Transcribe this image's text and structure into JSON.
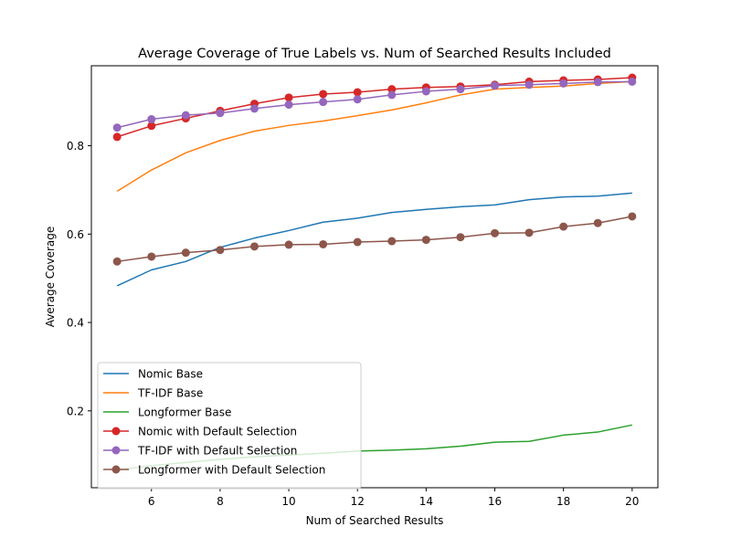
{
  "chart_data": {
    "type": "line",
    "title": "Average Coverage of True Labels vs. Num of Searched Results Included",
    "xlabel": "Num of Searched Results",
    "ylabel": "Average Coverage",
    "xlim": [
      4.25,
      20.75
    ],
    "ylim": [
      0.026,
      0.981
    ],
    "xticks": [
      6,
      8,
      10,
      12,
      14,
      16,
      18,
      20
    ],
    "yticks": [
      0.2,
      0.4,
      0.6,
      0.8
    ],
    "xtick_labels": [
      "6",
      "8",
      "10",
      "12",
      "14",
      "16",
      "18",
      "20"
    ],
    "ytick_labels": [
      "0.2",
      "0.4",
      "0.6",
      "0.8"
    ],
    "legend_position": "lower-left",
    "grid": false,
    "x": [
      5,
      6,
      7,
      8,
      9,
      10,
      11,
      12,
      13,
      14,
      15,
      16,
      17,
      18,
      19,
      20
    ],
    "series": [
      {
        "name": "Nomic Base",
        "color": "#1f77b4",
        "marker": false,
        "values": [
          0.483,
          0.519,
          0.538,
          0.57,
          0.591,
          0.608,
          0.627,
          0.636,
          0.649,
          0.656,
          0.662,
          0.666,
          0.678,
          0.684,
          0.686,
          0.693
        ]
      },
      {
        "name": "TF-IDF Base",
        "color": "#ff7f0e",
        "marker": false,
        "values": [
          0.697,
          0.745,
          0.784,
          0.812,
          0.833,
          0.846,
          0.856,
          0.868,
          0.881,
          0.897,
          0.915,
          0.928,
          0.932,
          0.935,
          0.941,
          0.945
        ]
      },
      {
        "name": "Longformer Base",
        "color": "#2ca02c",
        "marker": false,
        "values": [
          0.066,
          0.076,
          0.083,
          0.09,
          0.096,
          0.1,
          0.104,
          0.109,
          0.111,
          0.114,
          0.12,
          0.129,
          0.131,
          0.145,
          0.152,
          0.168
        ]
      },
      {
        "name": "Nomic with Default Selection",
        "color": "#d62728",
        "marker": true,
        "values": [
          0.82,
          0.845,
          0.862,
          0.879,
          0.895,
          0.909,
          0.917,
          0.921,
          0.928,
          0.932,
          0.934,
          0.938,
          0.945,
          0.948,
          0.95,
          0.954
        ]
      },
      {
        "name": "TF-IDF with Default Selection",
        "color": "#9467bd",
        "marker": true,
        "values": [
          0.841,
          0.86,
          0.869,
          0.874,
          0.884,
          0.893,
          0.899,
          0.905,
          0.915,
          0.923,
          0.928,
          0.936,
          0.938,
          0.941,
          0.944,
          0.945
        ]
      },
      {
        "name": "Longformer with Default Selection",
        "color": "#8c564b",
        "marker": true,
        "values": [
          0.538,
          0.549,
          0.558,
          0.564,
          0.572,
          0.576,
          0.577,
          0.582,
          0.584,
          0.587,
          0.593,
          0.602,
          0.603,
          0.617,
          0.625,
          0.64
        ]
      }
    ]
  }
}
